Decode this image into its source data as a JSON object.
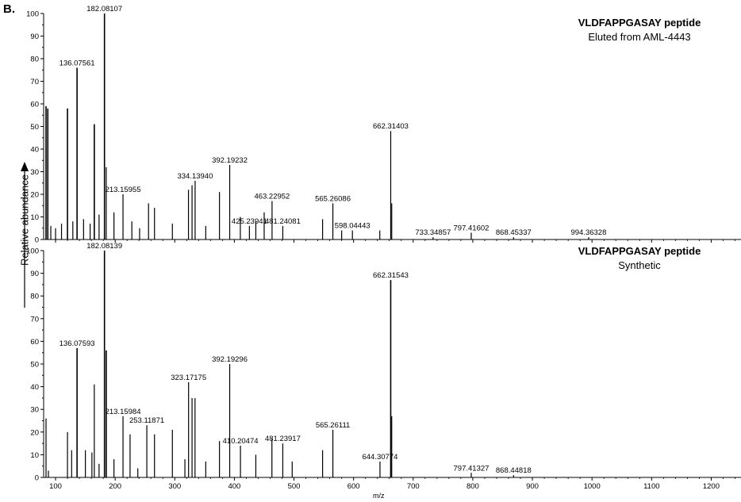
{
  "panel_label": "B.",
  "ylabel": "Relative abundance",
  "xlabel": "m/z",
  "chart_data": [
    {
      "type": "bar",
      "title": "VLDFAPPGASAY peptide",
      "subtitle": "Eluted from AML-4443",
      "ylim": [
        0,
        100
      ],
      "xlim": [
        80,
        1250
      ],
      "xticks": [
        100,
        200,
        300,
        400,
        500,
        600,
        700,
        800,
        900,
        1000,
        1100,
        1200
      ],
      "yticks": [
        0,
        10,
        20,
        30,
        40,
        50,
        60,
        70,
        80,
        90,
        100
      ],
      "peaks": [
        {
          "mz": 84,
          "int": 59
        },
        {
          "mz": 87,
          "int": 58
        },
        {
          "mz": 92,
          "int": 6
        },
        {
          "mz": 100,
          "int": 5
        },
        {
          "mz": 110,
          "int": 7
        },
        {
          "mz": 120,
          "int": 58
        },
        {
          "mz": 129,
          "int": 8
        },
        {
          "mz": 136.07561,
          "int": 76,
          "label": "136.07561"
        },
        {
          "mz": 147,
          "int": 9
        },
        {
          "mz": 158,
          "int": 7
        },
        {
          "mz": 165,
          "int": 51
        },
        {
          "mz": 173,
          "int": 11
        },
        {
          "mz": 182.08107,
          "int": 100,
          "label": "182.08107"
        },
        {
          "mz": 185,
          "int": 32
        },
        {
          "mz": 198,
          "int": 12
        },
        {
          "mz": 213.15955,
          "int": 20,
          "label": "213.15955"
        },
        {
          "mz": 228,
          "int": 8
        },
        {
          "mz": 241,
          "int": 5
        },
        {
          "mz": 256,
          "int": 16
        },
        {
          "mz": 266,
          "int": 14
        },
        {
          "mz": 296,
          "int": 7
        },
        {
          "mz": 323,
          "int": 22
        },
        {
          "mz": 329,
          "int": 24
        },
        {
          "mz": 334.1394,
          "int": 26,
          "label": "334.13940"
        },
        {
          "mz": 352,
          "int": 6
        },
        {
          "mz": 375,
          "int": 21
        },
        {
          "mz": 392.19232,
          "int": 33,
          "label": "392.19232"
        },
        {
          "mz": 410,
          "int": 10
        },
        {
          "mz": 425.23941,
          "int": 6,
          "label": "425.23941"
        },
        {
          "mz": 436,
          "int": 8
        },
        {
          "mz": 450,
          "int": 12
        },
        {
          "mz": 463.22952,
          "int": 17,
          "label": "463.22952"
        },
        {
          "mz": 481.24081,
          "int": 6,
          "label": "481.24081"
        },
        {
          "mz": 548,
          "int": 9
        },
        {
          "mz": 565.26086,
          "int": 16,
          "label": "565.26086"
        },
        {
          "mz": 580,
          "int": 4
        },
        {
          "mz": 598.04443,
          "int": 4,
          "label": "598.04443"
        },
        {
          "mz": 644,
          "int": 4
        },
        {
          "mz": 662.31403,
          "int": 48,
          "label": "662.31403"
        },
        {
          "mz": 664,
          "int": 16
        },
        {
          "mz": 733.34857,
          "int": 1,
          "label": "733.34857"
        },
        {
          "mz": 797.41602,
          "int": 3,
          "label": "797.41602"
        },
        {
          "mz": 868.45337,
          "int": 1,
          "label": "868.45337"
        },
        {
          "mz": 994.36328,
          "int": 1,
          "label": "994.36328"
        }
      ]
    },
    {
      "type": "bar",
      "title": "VLDFAPPGASAY peptide",
      "subtitle": "Synthetic",
      "ylim": [
        0,
        100
      ],
      "xlim": [
        80,
        1250
      ],
      "xticks": [
        100,
        200,
        300,
        400,
        500,
        600,
        700,
        800,
        900,
        1000,
        1100,
        1200
      ],
      "yticks": [
        0,
        10,
        20,
        30,
        40,
        50,
        60,
        70,
        80,
        90,
        100
      ],
      "peaks": [
        {
          "mz": 84,
          "int": 26
        },
        {
          "mz": 88,
          "int": 3
        },
        {
          "mz": 120,
          "int": 20
        },
        {
          "mz": 127,
          "int": 12
        },
        {
          "mz": 136.07593,
          "int": 57,
          "label": "136.07593"
        },
        {
          "mz": 150,
          "int": 12
        },
        {
          "mz": 161,
          "int": 11
        },
        {
          "mz": 165,
          "int": 41
        },
        {
          "mz": 173,
          "int": 6
        },
        {
          "mz": 182.08139,
          "int": 100,
          "label": "182.08139"
        },
        {
          "mz": 185,
          "int": 56
        },
        {
          "mz": 198,
          "int": 8
        },
        {
          "mz": 213.15984,
          "int": 27,
          "label": "213.15984"
        },
        {
          "mz": 225,
          "int": 19
        },
        {
          "mz": 238,
          "int": 4
        },
        {
          "mz": 253.11871,
          "int": 23,
          "label": "253.11871"
        },
        {
          "mz": 266,
          "int": 19
        },
        {
          "mz": 296,
          "int": 21
        },
        {
          "mz": 317,
          "int": 8
        },
        {
          "mz": 323.17175,
          "int": 42,
          "label": "323.17175"
        },
        {
          "mz": 329,
          "int": 35
        },
        {
          "mz": 334,
          "int": 35
        },
        {
          "mz": 352,
          "int": 7
        },
        {
          "mz": 375,
          "int": 16
        },
        {
          "mz": 392.19296,
          "int": 50,
          "label": "392.19296"
        },
        {
          "mz": 410.20474,
          "int": 14,
          "label": "410.20474"
        },
        {
          "mz": 436,
          "int": 10
        },
        {
          "mz": 463,
          "int": 17
        },
        {
          "mz": 481.23917,
          "int": 15,
          "label": "481.23917"
        },
        {
          "mz": 497,
          "int": 7
        },
        {
          "mz": 548,
          "int": 12
        },
        {
          "mz": 565.26111,
          "int": 21,
          "label": "565.26111"
        },
        {
          "mz": 644.30774,
          "int": 7,
          "label": "644.30774"
        },
        {
          "mz": 662.31543,
          "int": 87,
          "label": "662.31543"
        },
        {
          "mz": 664,
          "int": 27
        },
        {
          "mz": 797.41327,
          "int": 2,
          "label": "797.41327"
        },
        {
          "mz": 868.44818,
          "int": 1,
          "label": "868.44818"
        }
      ]
    }
  ]
}
